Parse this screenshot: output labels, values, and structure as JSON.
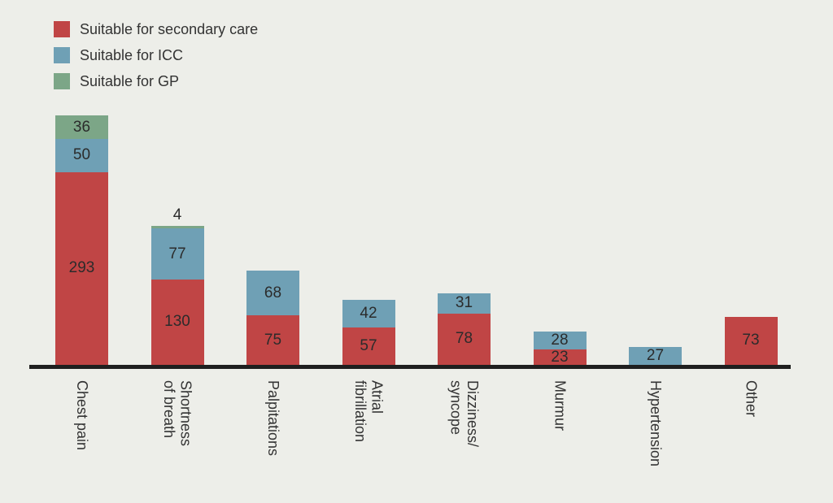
{
  "colors": {
    "background": "#edeee9",
    "axis": "#1f1f1f",
    "text": "#333333",
    "value_text": "#2b2b2b"
  },
  "chart_data": {
    "type": "bar",
    "stacked": true,
    "orientation": "vertical",
    "title": "",
    "xlabel": "",
    "ylabel": "",
    "grid": false,
    "y_axis_shown": false,
    "legend_position": "top-left",
    "categories": [
      "Chest pain",
      "Shortness\nof breath",
      "Palpitations",
      "Atrial\nfibrillation",
      "Dizziness/\nsyncope",
      "Murmur",
      "Hypertension",
      "Other"
    ],
    "series": [
      {
        "name": "Suitable for secondary care",
        "color": "#c04545",
        "values": [
          293,
          130,
          75,
          57,
          78,
          23,
          0,
          73
        ]
      },
      {
        "name": "Suitable for ICC",
        "color": "#6fa0b5",
        "values": [
          50,
          77,
          68,
          42,
          31,
          28,
          27,
          0
        ]
      },
      {
        "name": "Suitable for GP",
        "color": "#7ca687",
        "values": [
          36,
          4,
          0,
          0,
          0,
          0,
          0,
          0
        ]
      }
    ],
    "value_labels_shown": true,
    "totals": [
      379,
      211,
      143,
      99,
      109,
      51,
      27,
      73
    ]
  }
}
